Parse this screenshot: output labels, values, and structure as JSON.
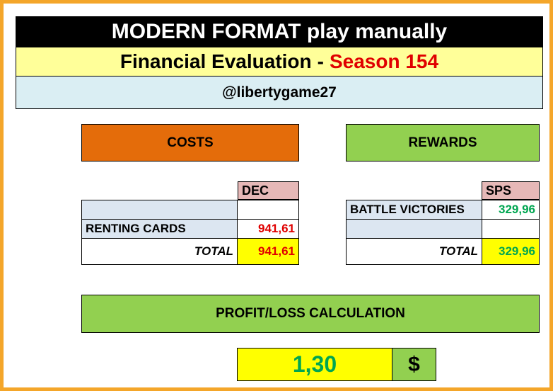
{
  "header": {
    "title": "MODERN FORMAT play manually",
    "subtitle_main": "Financial Evaluation",
    "subtitle_dash": "-",
    "subtitle_season": "Season 154",
    "account": "@libertygame27"
  },
  "costs": {
    "title": "COSTS",
    "column": "DEC",
    "rows": [
      {
        "label": "",
        "value": ""
      },
      {
        "label": "RENTING CARDS",
        "value": "941,61"
      }
    ],
    "total_label": "TOTAL",
    "total_value": "941,61"
  },
  "rewards": {
    "title": "REWARDS",
    "column": "SPS",
    "rows": [
      {
        "label": "BATTLE VICTORIES",
        "value": "329,96"
      },
      {
        "label": "",
        "value": ""
      }
    ],
    "total_label": "TOTAL",
    "total_value": "329,96"
  },
  "profit": {
    "title": "PROFIT/LOSS CALCULATION",
    "value": "1,30",
    "currency": "$"
  },
  "colors": {
    "frame": "#f4a62a",
    "costs_header": "#e46c0a",
    "rewards_header": "#92d050",
    "highlight": "#ffff00",
    "negative": "#e00000",
    "positive": "#00a651"
  }
}
